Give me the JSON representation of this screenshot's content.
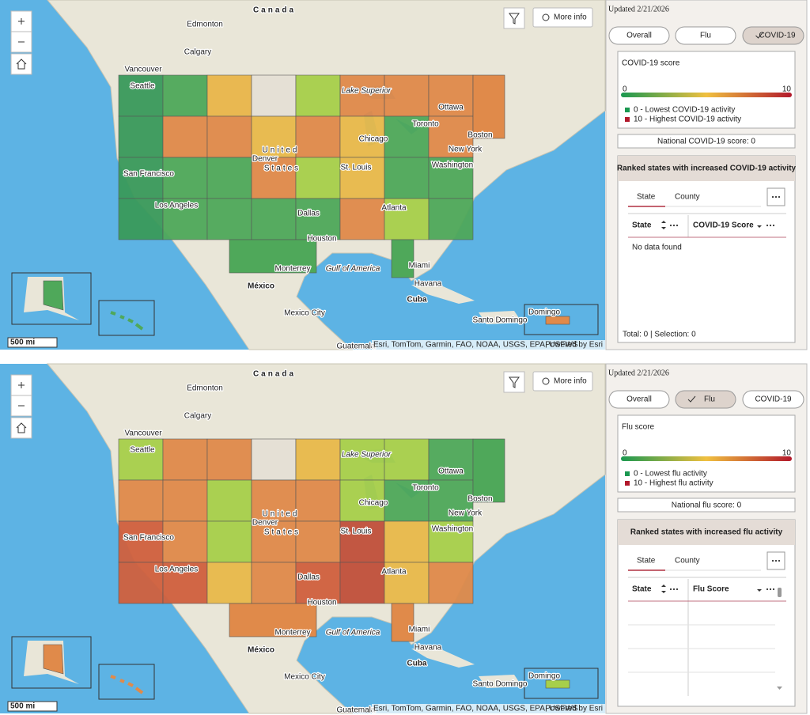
{
  "panels": [
    {
      "map": {
        "labels": [
          "Canada",
          "Edmonton",
          "Calgary",
          "Vancouver",
          "Seattle",
          "San Francisco",
          "Los Angeles",
          "Denver",
          "United",
          "States",
          "St. Louis",
          "Chicago",
          "Toronto",
          "Ottawa",
          "Boston",
          "New York",
          "Washington",
          "Atlanta",
          "Dallas",
          "Houston",
          "Miami",
          "Monterrey",
          "México",
          "Mexico City",
          "Havana",
          "Cuba",
          "Santo Domingo",
          "Gulf of America",
          "Lake Superior",
          "Guatemala",
          "Domingo"
        ],
        "more_info": "More info",
        "scale": "500 mi",
        "attribution": "Esri, TomTom, Garmin, FAO, NOAA, USGS, EPA, USFWS",
        "powered": "Powered by Esri"
      },
      "sidebar": {
        "updated": "Updated 2/21/2026",
        "tabs": [
          "Overall",
          "Flu",
          "COVID-19"
        ],
        "selected_tab": 2,
        "legend_title": "COVID-19 score",
        "scale_min": 0,
        "scale_max": 10,
        "legend_items": [
          "0 - Lowest COVID-19 activity",
          "10 - Highest COVID-19 activity"
        ],
        "national": "National COVID-19 score: 0",
        "ranked_title": "Ranked states with increased COVID-19 activity",
        "subtabs": [
          "State",
          "County"
        ],
        "columns": [
          "State",
          "COVID-19 Score"
        ],
        "empty_message": "No data found",
        "footer": "Total: 0 | Selection: 0"
      }
    },
    {
      "map": {
        "labels": [
          "Canada",
          "Edmonton",
          "Calgary",
          "Vancouver",
          "Seattle",
          "San Francisco",
          "Los Angeles",
          "Denver",
          "United",
          "States",
          "St. Louis",
          "Chicago",
          "Toronto",
          "Ottawa",
          "Boston",
          "New York",
          "Washington",
          "Atlanta",
          "Dallas",
          "Houston",
          "Miami",
          "Monterrey",
          "México",
          "Mexico City",
          "Havana",
          "Cuba",
          "Santo Domingo",
          "Gulf of America",
          "Lake Superior",
          "Guatemala",
          "Domingo"
        ],
        "more_info": "More info",
        "scale": "500 mi",
        "attribution": "Esri, TomTom, Garmin, FAO, NOAA, USGS, EPA, USFWS",
        "powered": "Powered by Esri"
      },
      "sidebar": {
        "updated": "Updated 2/21/2026",
        "tabs": [
          "Overall",
          "Flu",
          "COVID-19"
        ],
        "selected_tab": 1,
        "legend_title": "Flu score",
        "scale_min": 0,
        "scale_max": 10,
        "legend_items": [
          "0 - Lowest flu activity",
          "10 - Highest flu activity"
        ],
        "national": "National flu score: 0",
        "ranked_title": "Ranked states with increased flu activity",
        "subtabs": [
          "State",
          "County"
        ],
        "columns": [
          "State",
          "Flu Score"
        ]
      }
    }
  ]
}
